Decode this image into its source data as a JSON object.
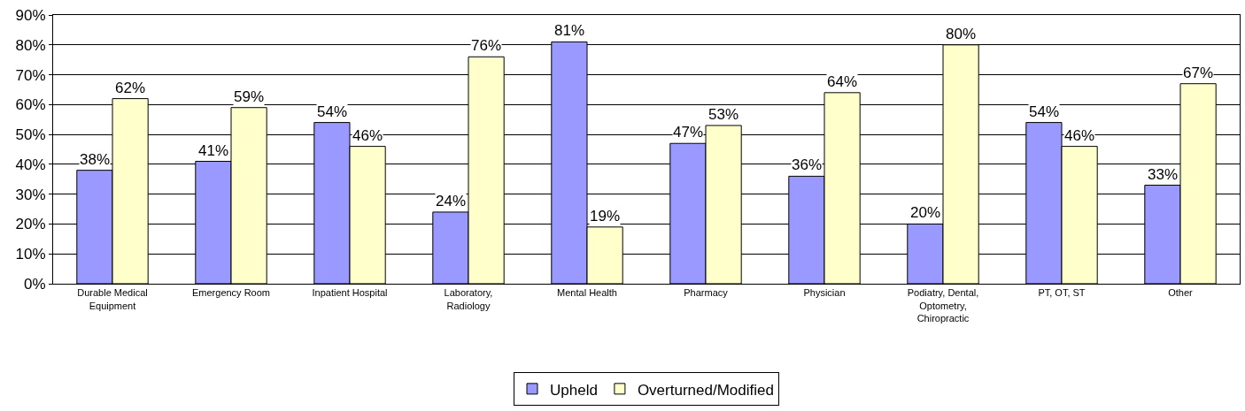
{
  "chart_data": {
    "type": "bar",
    "categories": [
      "Durable Medical Equipment",
      "Emergency Room",
      "Inpatient Hospital",
      "Laboratory, Radiology",
      "Mental Health",
      "Pharmacy",
      "Physician",
      "Podiatry, Dental, Optometry, Chiropractic",
      "PT, OT, ST",
      "Other"
    ],
    "series": [
      {
        "name": "Upheld",
        "color": "#9999ff",
        "values": [
          38,
          41,
          54,
          24,
          81,
          47,
          36,
          20,
          54,
          33
        ],
        "value_labels": [
          "38%",
          "41%",
          "54%",
          "24%",
          "81%",
          "47%",
          "36%",
          "20%",
          "54%",
          "33%"
        ]
      },
      {
        "name": "Overturned/Modified",
        "color": "#ffffcc",
        "values": [
          62,
          59,
          46,
          76,
          19,
          53,
          64,
          80,
          46,
          67
        ],
        "value_labels": [
          "62%",
          "59%",
          "46%",
          "76%",
          "19%",
          "53%",
          "64%",
          "80%",
          "46%",
          "67%"
        ]
      }
    ],
    "ylim": [
      0,
      90
    ],
    "yticks": [
      {
        "value": 0,
        "label": "0%"
      },
      {
        "value": 10,
        "label": "10%"
      },
      {
        "value": 20,
        "label": "20%"
      },
      {
        "value": 30,
        "label": "30%"
      },
      {
        "value": 40,
        "label": "40%"
      },
      {
        "value": 50,
        "label": "50%"
      },
      {
        "value": 60,
        "label": "60%"
      },
      {
        "value": 70,
        "label": "70%"
      },
      {
        "value": 80,
        "label": "80%"
      },
      {
        "value": 90,
        "label": "90%"
      }
    ],
    "grid": "y",
    "legend": "bottom"
  }
}
